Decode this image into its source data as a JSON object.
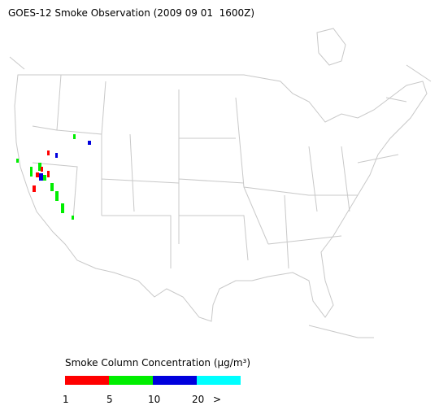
{
  "title": "GOES-12 Smoke Observation (2009 09 01  1600Z)",
  "legend": {
    "title": "Smoke Column Concentration (μg/m³)",
    "colors": [
      "#ff0000",
      "#00ee00",
      "#0000dd",
      "#00ffff"
    ],
    "labels": [
      "1",
      "5",
      "10",
      "20",
      ">"
    ]
  }
}
